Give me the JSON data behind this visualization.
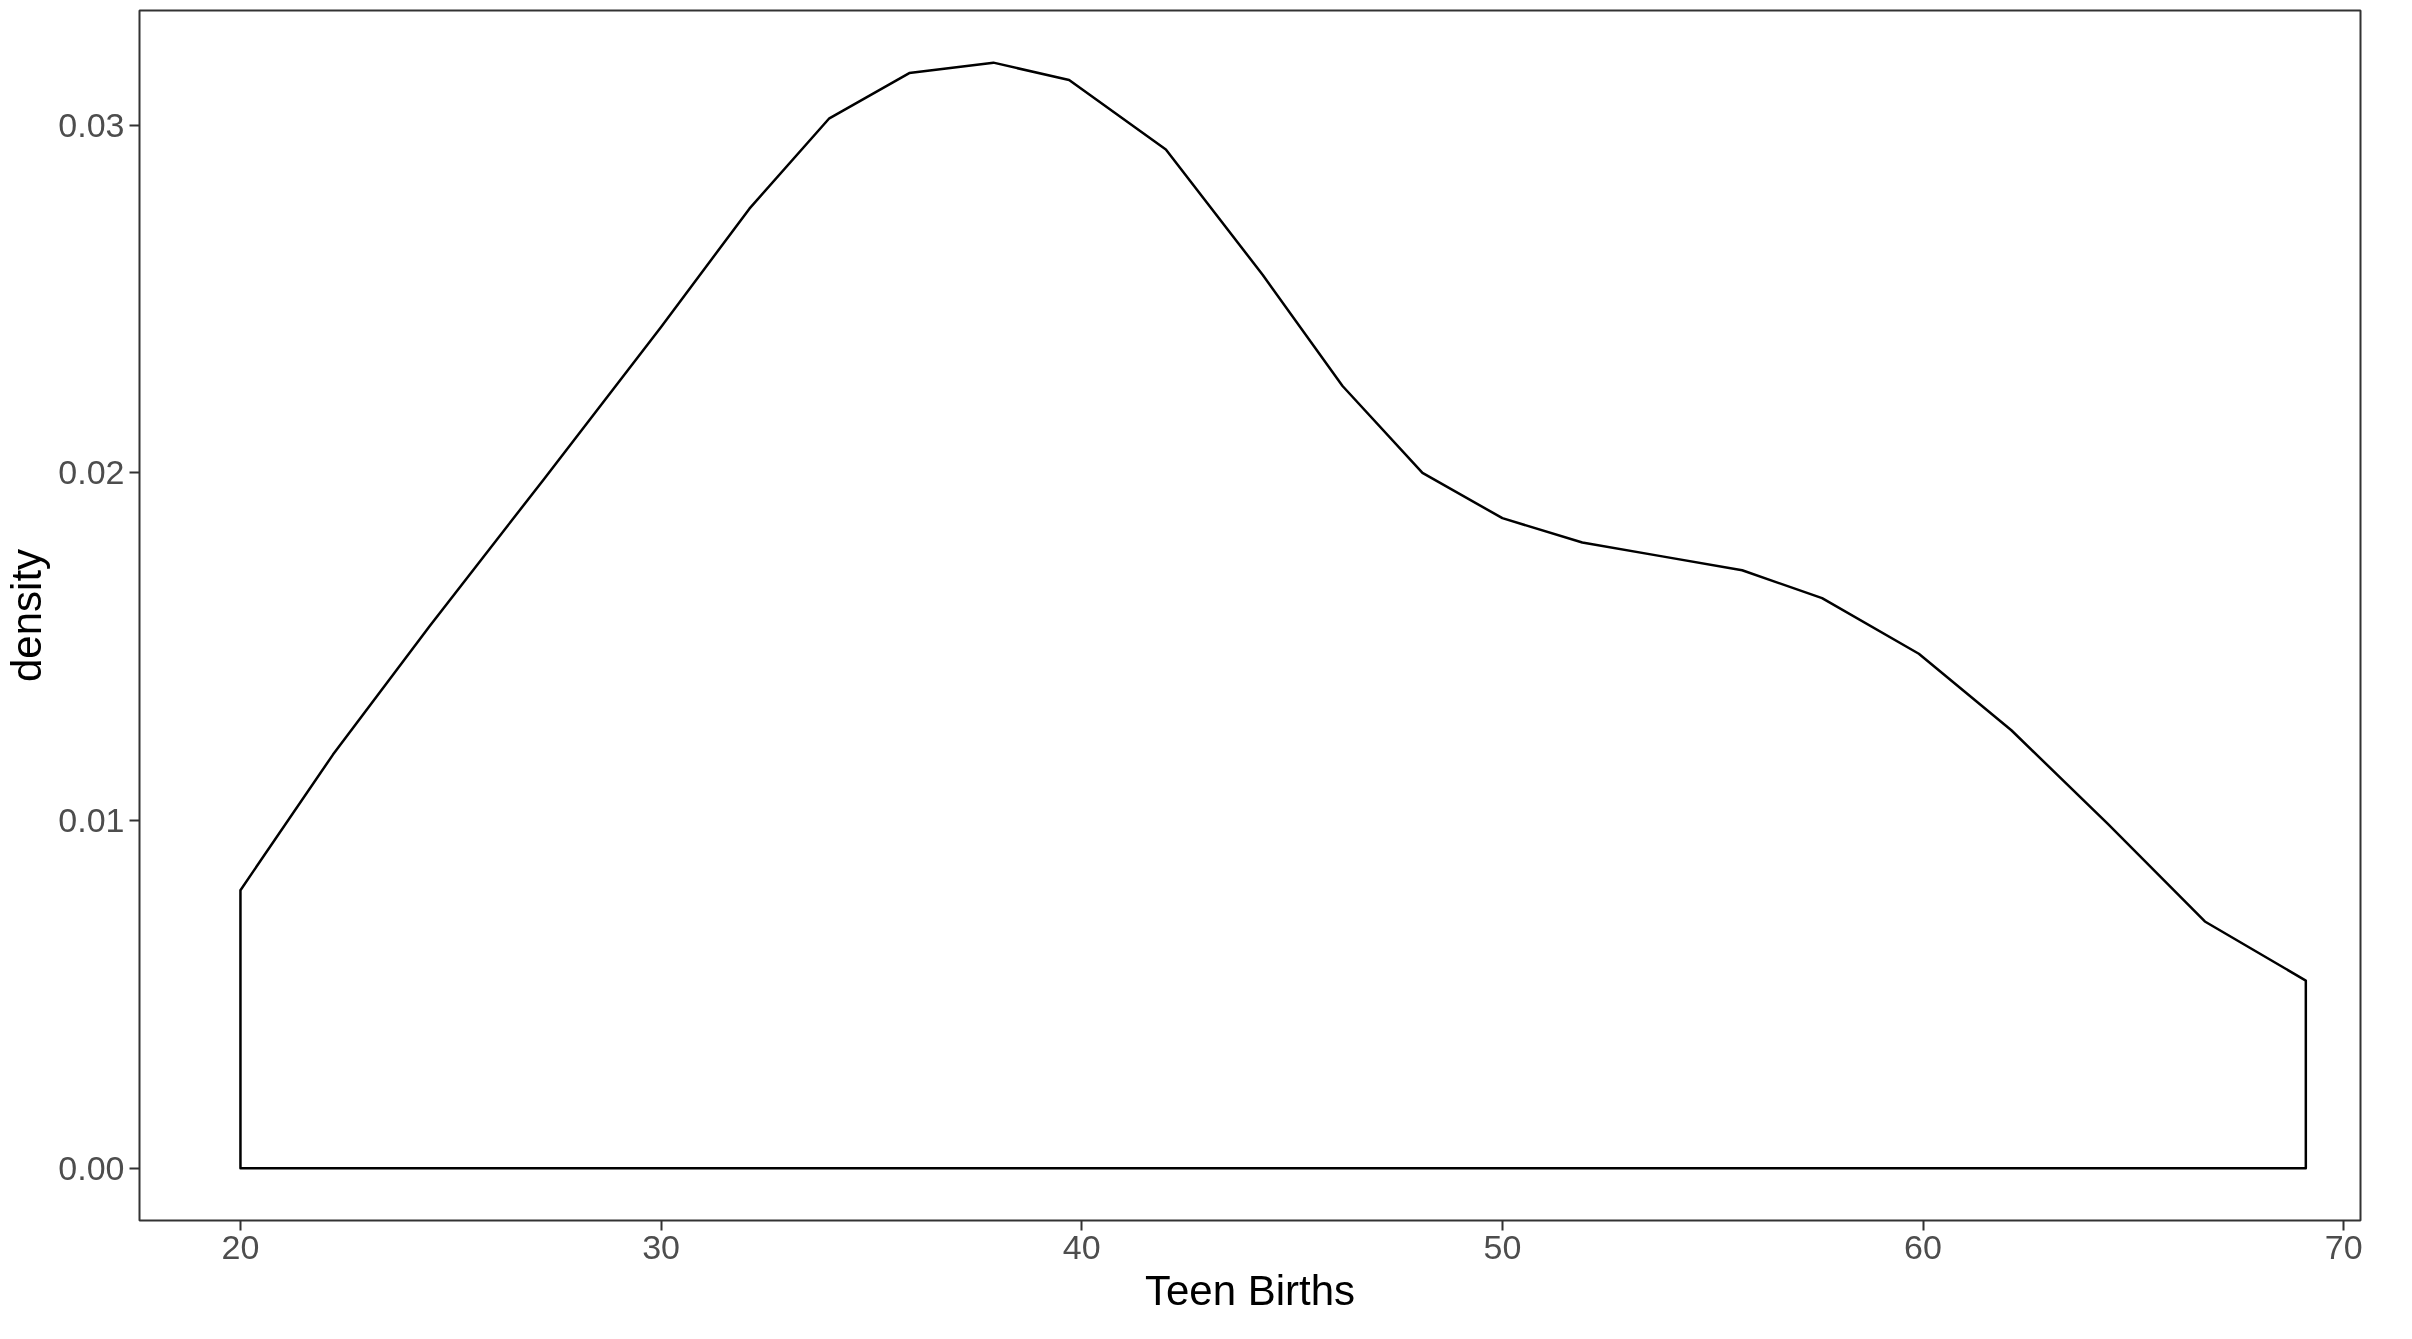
{
  "chart_data": {
    "type": "area",
    "xlabel": "Teen Births",
    "ylabel": "density",
    "x": [
      20,
      22.2,
      24.5,
      27.2,
      30.0,
      32.1,
      34.0,
      35.9,
      37.9,
      39.7,
      42.0,
      44.3,
      46.2,
      48.1,
      50.0,
      51.9,
      53.8,
      55.7,
      57.6,
      59.9,
      62.1,
      64.4,
      66.7,
      69.1
    ],
    "series": [
      {
        "color": "#000000",
        "values": [
          0.008,
          0.0119,
          0.0156,
          0.0198,
          0.0242,
          0.0276,
          0.0302,
          0.0315,
          0.0318,
          0.0313,
          0.0293,
          0.0257,
          0.0225,
          0.02,
          0.0187,
          0.018,
          0.0176,
          0.0172,
          0.0164,
          0.0148,
          0.0126,
          0.0099,
          0.0071,
          0.0054
        ]
      }
    ],
    "xlim": [
      17.6,
      70.4
    ],
    "ylim": [
      -0.0015,
      0.0333
    ],
    "xticks": [
      20,
      30,
      40,
      50,
      60,
      70
    ],
    "yticks": [
      {
        "value": 0,
        "label": "0.00"
      },
      {
        "value": 0.01,
        "label": "0.01"
      },
      {
        "value": 0.02,
        "label": "0.02"
      },
      {
        "value": 0.03,
        "label": "0.03"
      }
    ],
    "grid": false
  }
}
